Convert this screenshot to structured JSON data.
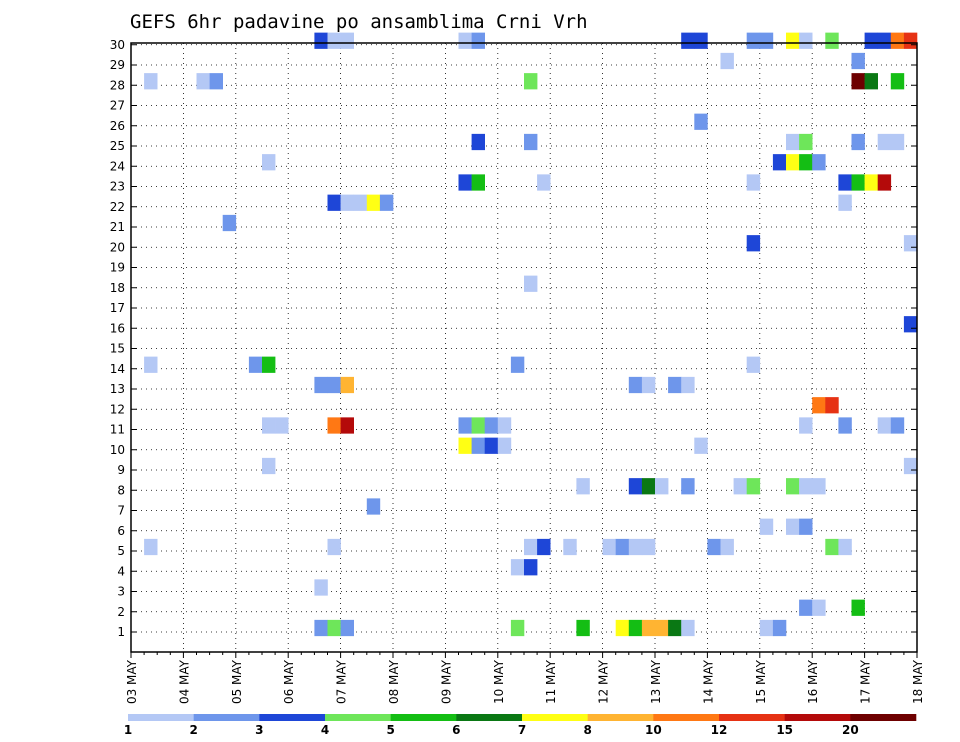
{
  "chart_data": {
    "type": "heatmap",
    "title": "GEFS 6hr padavine po ansamblima Crni Vrh",
    "xlabel": "",
    "ylabel": "",
    "x_tick_labels": [
      "03 MAY",
      "04 MAY",
      "05 MAY",
      "06 MAY",
      "07 MAY",
      "08 MAY",
      "09 MAY",
      "10 MAY",
      "11 MAY",
      "12 MAY",
      "13 MAY",
      "14 MAY",
      "15 MAY",
      "16 MAY",
      "17 MAY",
      "18 MAY"
    ],
    "x_unit": "6-hour step from 03 MAY 00z",
    "x_range": [
      0,
      60
    ],
    "y_tick_labels": [
      "1",
      "2",
      "3",
      "4",
      "5",
      "6",
      "7",
      "8",
      "9",
      "10",
      "11",
      "12",
      "13",
      "14",
      "15",
      "16",
      "17",
      "18",
      "19",
      "20",
      "21",
      "22",
      "23",
      "24",
      "25",
      "26",
      "27",
      "28",
      "29",
      "30"
    ],
    "y_range": [
      0,
      30
    ],
    "grid": true,
    "legend": {
      "placement": "bottom",
      "colors": [
        "#b4c8f5",
        "#6e96eb",
        "#1e46d7",
        "#6ee65a",
        "#14be14",
        "#0a7814",
        "#ffff14",
        "#ffb432",
        "#ff7814",
        "#e63214",
        "#b40a0a",
        "#6e0000"
      ],
      "labels": [
        "1",
        "2",
        "3",
        "4",
        "5",
        "6",
        "7",
        "8",
        "10",
        "12",
        "15",
        "20"
      ]
    },
    "cells": [
      {
        "x": 14,
        "y": 30,
        "v": 3
      },
      {
        "x": 15,
        "y": 30,
        "v": 1
      },
      {
        "x": 16,
        "y": 30,
        "v": 1
      },
      {
        "x": 25,
        "y": 30,
        "v": 1
      },
      {
        "x": 26,
        "y": 30,
        "v": 2
      },
      {
        "x": 42,
        "y": 30,
        "v": 3
      },
      {
        "x": 43,
        "y": 30,
        "v": 3
      },
      {
        "x": 47,
        "y": 30,
        "v": 2
      },
      {
        "x": 48,
        "y": 30,
        "v": 2
      },
      {
        "x": 50,
        "y": 30,
        "v": 7
      },
      {
        "x": 51,
        "y": 30,
        "v": 1
      },
      {
        "x": 53,
        "y": 30,
        "v": 4
      },
      {
        "x": 56,
        "y": 30,
        "v": 3
      },
      {
        "x": 57,
        "y": 30,
        "v": 3
      },
      {
        "x": 58,
        "y": 30,
        "v": 10
      },
      {
        "x": 59,
        "y": 30,
        "v": 12
      },
      {
        "x": 45,
        "y": 29,
        "v": 1
      },
      {
        "x": 55,
        "y": 29,
        "v": 2
      },
      {
        "x": 1,
        "y": 28,
        "v": 1
      },
      {
        "x": 5,
        "y": 28,
        "v": 1
      },
      {
        "x": 6,
        "y": 28,
        "v": 2
      },
      {
        "x": 30,
        "y": 28,
        "v": 4
      },
      {
        "x": 55,
        "y": 28,
        "v": 20
      },
      {
        "x": 56,
        "y": 28,
        "v": 6
      },
      {
        "x": 58,
        "y": 28,
        "v": 5
      },
      {
        "x": 43,
        "y": 26,
        "v": 2
      },
      {
        "x": 26,
        "y": 25,
        "v": 3
      },
      {
        "x": 30,
        "y": 25,
        "v": 2
      },
      {
        "x": 50,
        "y": 25,
        "v": 1
      },
      {
        "x": 51,
        "y": 25,
        "v": 4
      },
      {
        "x": 55,
        "y": 25,
        "v": 2
      },
      {
        "x": 57,
        "y": 25,
        "v": 1
      },
      {
        "x": 58,
        "y": 25,
        "v": 1
      },
      {
        "x": 10,
        "y": 24,
        "v": 1
      },
      {
        "x": 49,
        "y": 24,
        "v": 3
      },
      {
        "x": 50,
        "y": 24,
        "v": 7
      },
      {
        "x": 51,
        "y": 24,
        "v": 5
      },
      {
        "x": 52,
        "y": 24,
        "v": 2
      },
      {
        "x": 25,
        "y": 23,
        "v": 3
      },
      {
        "x": 26,
        "y": 23,
        "v": 5
      },
      {
        "x": 31,
        "y": 23,
        "v": 1
      },
      {
        "x": 47,
        "y": 23,
        "v": 1
      },
      {
        "x": 54,
        "y": 23,
        "v": 3
      },
      {
        "x": 55,
        "y": 23,
        "v": 5
      },
      {
        "x": 56,
        "y": 23,
        "v": 7
      },
      {
        "x": 57,
        "y": 23,
        "v": 15
      },
      {
        "x": 15,
        "y": 22,
        "v": 3
      },
      {
        "x": 16,
        "y": 22,
        "v": 1
      },
      {
        "x": 17,
        "y": 22,
        "v": 1
      },
      {
        "x": 18,
        "y": 22,
        "v": 7
      },
      {
        "x": 19,
        "y": 22,
        "v": 2
      },
      {
        "x": 54,
        "y": 22,
        "v": 1
      },
      {
        "x": 7,
        "y": 21,
        "v": 2
      },
      {
        "x": 47,
        "y": 20,
        "v": 3
      },
      {
        "x": 59,
        "y": 20,
        "v": 1
      },
      {
        "x": 30,
        "y": 18,
        "v": 1
      },
      {
        "x": 59,
        "y": 16,
        "v": 3
      },
      {
        "x": 1,
        "y": 14,
        "v": 1
      },
      {
        "x": 9,
        "y": 14,
        "v": 2
      },
      {
        "x": 10,
        "y": 14,
        "v": 5
      },
      {
        "x": 29,
        "y": 14,
        "v": 2
      },
      {
        "x": 47,
        "y": 14,
        "v": 1
      },
      {
        "x": 14,
        "y": 13,
        "v": 2
      },
      {
        "x": 15,
        "y": 13,
        "v": 2
      },
      {
        "x": 16,
        "y": 13,
        "v": 8
      },
      {
        "x": 38,
        "y": 13,
        "v": 2
      },
      {
        "x": 39,
        "y": 13,
        "v": 1
      },
      {
        "x": 41,
        "y": 13,
        "v": 2
      },
      {
        "x": 42,
        "y": 13,
        "v": 1
      },
      {
        "x": 52,
        "y": 12,
        "v": 10
      },
      {
        "x": 53,
        "y": 12,
        "v": 12
      },
      {
        "x": 10,
        "y": 11,
        "v": 1
      },
      {
        "x": 11,
        "y": 11,
        "v": 1
      },
      {
        "x": 15,
        "y": 11,
        "v": 10
      },
      {
        "x": 16,
        "y": 11,
        "v": 15
      },
      {
        "x": 25,
        "y": 11,
        "v": 2
      },
      {
        "x": 26,
        "y": 11,
        "v": 4
      },
      {
        "x": 27,
        "y": 11,
        "v": 2
      },
      {
        "x": 28,
        "y": 11,
        "v": 1
      },
      {
        "x": 51,
        "y": 11,
        "v": 1
      },
      {
        "x": 54,
        "y": 11,
        "v": 2
      },
      {
        "x": 57,
        "y": 11,
        "v": 1
      },
      {
        "x": 58,
        "y": 11,
        "v": 2
      },
      {
        "x": 25,
        "y": 10,
        "v": 7
      },
      {
        "x": 26,
        "y": 10,
        "v": 2
      },
      {
        "x": 27,
        "y": 10,
        "v": 3
      },
      {
        "x": 28,
        "y": 10,
        "v": 1
      },
      {
        "x": 43,
        "y": 10,
        "v": 1
      },
      {
        "x": 10,
        "y": 9,
        "v": 1
      },
      {
        "x": 59,
        "y": 9,
        "v": 1
      },
      {
        "x": 34,
        "y": 8,
        "v": 1
      },
      {
        "x": 38,
        "y": 8,
        "v": 3
      },
      {
        "x": 39,
        "y": 8,
        "v": 6
      },
      {
        "x": 40,
        "y": 8,
        "v": 1
      },
      {
        "x": 42,
        "y": 8,
        "v": 2
      },
      {
        "x": 46,
        "y": 8,
        "v": 1
      },
      {
        "x": 47,
        "y": 8,
        "v": 4
      },
      {
        "x": 50,
        "y": 8,
        "v": 4
      },
      {
        "x": 51,
        "y": 8,
        "v": 1
      },
      {
        "x": 52,
        "y": 8,
        "v": 1
      },
      {
        "x": 18,
        "y": 7,
        "v": 2
      },
      {
        "x": 48,
        "y": 6,
        "v": 1
      },
      {
        "x": 50,
        "y": 6,
        "v": 1
      },
      {
        "x": 51,
        "y": 6,
        "v": 2
      },
      {
        "x": 1,
        "y": 5,
        "v": 1
      },
      {
        "x": 15,
        "y": 5,
        "v": 1
      },
      {
        "x": 30,
        "y": 5,
        "v": 1
      },
      {
        "x": 31,
        "y": 5,
        "v": 3
      },
      {
        "x": 33,
        "y": 5,
        "v": 1
      },
      {
        "x": 36,
        "y": 5,
        "v": 1
      },
      {
        "x": 37,
        "y": 5,
        "v": 2
      },
      {
        "x": 38,
        "y": 5,
        "v": 1
      },
      {
        "x": 39,
        "y": 5,
        "v": 1
      },
      {
        "x": 44,
        "y": 5,
        "v": 2
      },
      {
        "x": 45,
        "y": 5,
        "v": 1
      },
      {
        "x": 53,
        "y": 5,
        "v": 4
      },
      {
        "x": 54,
        "y": 5,
        "v": 1
      },
      {
        "x": 29,
        "y": 4,
        "v": 1
      },
      {
        "x": 30,
        "y": 4,
        "v": 3
      },
      {
        "x": 14,
        "y": 3,
        "v": 1
      },
      {
        "x": 51,
        "y": 2,
        "v": 2
      },
      {
        "x": 52,
        "y": 2,
        "v": 1
      },
      {
        "x": 55,
        "y": 2,
        "v": 5
      },
      {
        "x": 14,
        "y": 1,
        "v": 2
      },
      {
        "x": 15,
        "y": 1,
        "v": 4
      },
      {
        "x": 16,
        "y": 1,
        "v": 2
      },
      {
        "x": 29,
        "y": 1,
        "v": 4
      },
      {
        "x": 34,
        "y": 1,
        "v": 5
      },
      {
        "x": 37,
        "y": 1,
        "v": 7
      },
      {
        "x": 38,
        "y": 1,
        "v": 5
      },
      {
        "x": 39,
        "y": 1,
        "v": 8
      },
      {
        "x": 40,
        "y": 1,
        "v": 8
      },
      {
        "x": 41,
        "y": 1,
        "v": 6
      },
      {
        "x": 42,
        "y": 1,
        "v": 1
      },
      {
        "x": 48,
        "y": 1,
        "v": 1
      },
      {
        "x": 49,
        "y": 1,
        "v": 2
      }
    ]
  }
}
